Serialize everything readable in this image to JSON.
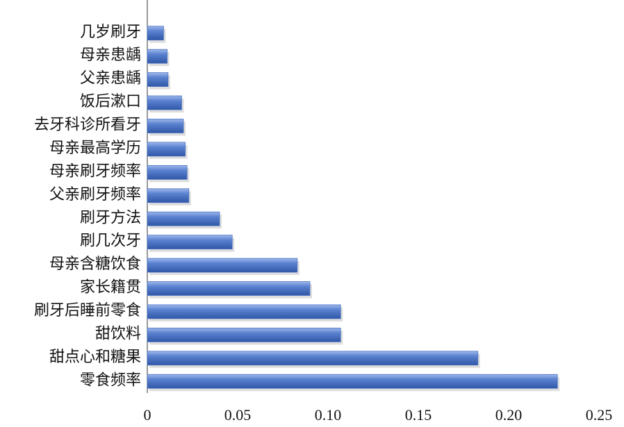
{
  "chart_data": {
    "type": "bar",
    "orientation": "horizontal",
    "color": "#4a72c4",
    "categories": [
      "几岁刷牙",
      "母亲患龋",
      "父亲患龋",
      "饭后漱口",
      "去牙科诊所看牙",
      "母亲最高学历",
      "母亲刷牙频率",
      "父亲刷牙频率",
      "刷牙方法",
      "刷几次牙",
      "母亲含糖饮食",
      "家长籍贯",
      "刷牙后睡前零食",
      "甜饮料",
      "甜点心和糖果",
      "零食频率"
    ],
    "values": [
      0.009,
      0.011,
      0.0115,
      0.019,
      0.02,
      0.021,
      0.022,
      0.023,
      0.04,
      0.047,
      0.083,
      0.09,
      0.107,
      0.107,
      0.183,
      0.227
    ],
    "xlim": [
      0,
      0.25
    ],
    "xticks": [
      0,
      0.05,
      {
        "value": 0.1,
        "label": "0.10"
      },
      0.15,
      {
        "value": 0.2,
        "label": "0.20"
      },
      0.25
    ]
  }
}
